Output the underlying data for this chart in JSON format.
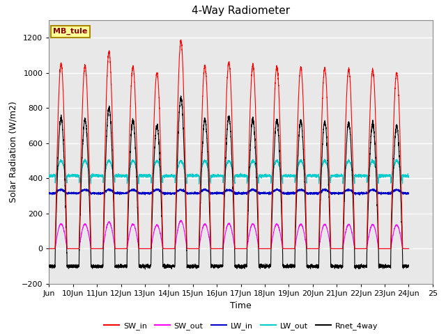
{
  "title": "4-Way Radiometer",
  "xlabel": "Time",
  "ylabel": "Solar Radiation (W/m2)",
  "ylim": [
    -200,
    1300
  ],
  "xlim_days": [
    9,
    25
  ],
  "yticks": [
    -200,
    0,
    200,
    400,
    600,
    800,
    1000,
    1200
  ],
  "xtick_labels": [
    "Jun",
    "10Jun",
    "11Jun",
    "12Jun",
    "13Jun",
    "14Jun",
    "15Jun",
    "16Jun",
    "17Jun",
    "18Jun",
    "19Jun",
    "20Jun",
    "21Jun",
    "22Jun",
    "23Jun",
    "24Jun",
    "25"
  ],
  "station_label": "MB_tule",
  "colors": {
    "SW_in": "#FF0000",
    "SW_out": "#FF00FF",
    "LW_in": "#0000CC",
    "LW_out": "#00CCCC",
    "Rnet_4way": "#000000"
  },
  "legend_labels": [
    "SW_in",
    "SW_out",
    "LW_in",
    "LW_out",
    "Rnet_4way"
  ],
  "background_color": "#FFFFFF",
  "plot_bg_color": "#E8E8E8",
  "grid_color": "#FFFFFF",
  "num_days": 15,
  "start_day": 9,
  "points_per_day": 288,
  "sw_in_peaks": [
    1050,
    1040,
    1120,
    1035,
    1000,
    1180,
    1040,
    1060,
    1040,
    1035,
    1030,
    1025,
    1020,
    1015,
    1000
  ],
  "lw_in_base": 315,
  "lw_out_base": 400,
  "lw_out_night": 370,
  "lw_out_day_peak": 500,
  "rnet_night": -100
}
